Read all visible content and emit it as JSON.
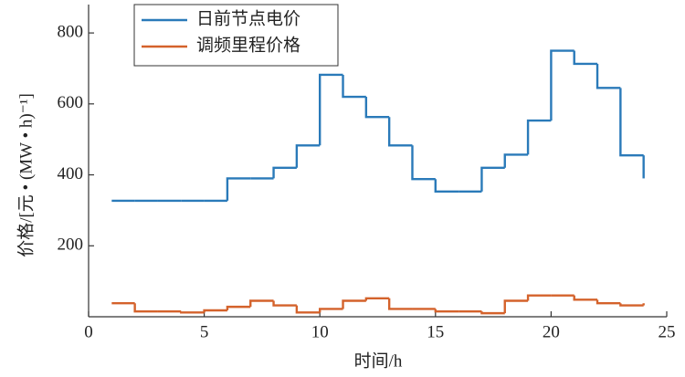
{
  "chart_data": {
    "type": "step",
    "x_label": "时间/h",
    "y_label": "价格/[元 • (MW • h)⁻¹]",
    "x": [
      1,
      2,
      3,
      4,
      5,
      6,
      7,
      8,
      9,
      10,
      11,
      12,
      13,
      14,
      15,
      16,
      17,
      18,
      19,
      20,
      21,
      22,
      23,
      24
    ],
    "series": [
      {
        "name": "日前节点电价",
        "color": "#2a7ab9",
        "values": [
          327,
          327,
          327,
          327,
          327,
          390,
          390,
          420,
          483,
          682,
          620,
          563,
          483,
          388,
          353,
          353,
          420,
          457,
          553,
          750,
          713,
          645,
          455,
          390
        ]
      },
      {
        "name": "调频里程价格",
        "color": "#d4622b",
        "values": [
          38,
          15,
          15,
          12,
          18,
          28,
          45,
          32,
          12,
          22,
          45,
          52,
          22,
          22,
          15,
          15,
          10,
          45,
          60,
          60,
          48,
          38,
          32,
          38
        ]
      }
    ],
    "xlim": [
      0,
      25
    ],
    "xticks": [
      0,
      5,
      10,
      15,
      20,
      25
    ],
    "ylim": [
      0,
      880
    ],
    "yticks": [
      200,
      400,
      600,
      800
    ],
    "legend": "top-left"
  }
}
